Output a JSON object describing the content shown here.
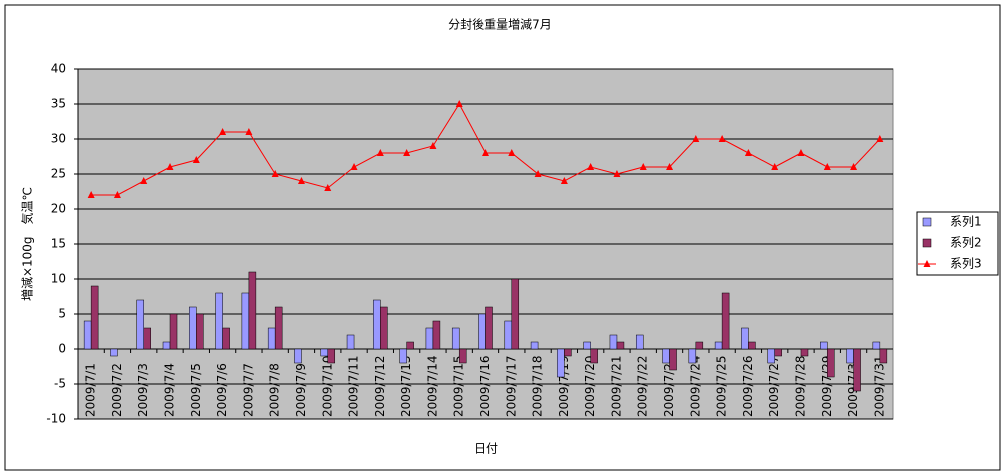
{
  "chart_data": {
    "type": "bar-line",
    "title": "分封後重量増減7月",
    "x_label": "日付",
    "y_label": "増減×100g　気温℃",
    "categories": [
      "2009/7/1",
      "2009/7/2",
      "2009/7/3",
      "2009/7/4",
      "2009/7/5",
      "2009/7/6",
      "2009/7/7",
      "2009/7/8",
      "2009/7/9",
      "2009/7/10",
      "2009/7/11",
      "2009/7/12",
      "2009/7/13",
      "2009/7/14",
      "2009/7/15",
      "2009/7/16",
      "2009/7/17",
      "2009/7/18",
      "2009/7/19",
      "2009/7/20",
      "2009/7/21",
      "2009/7/22",
      "2009/7/23",
      "2009/7/24",
      "2009/7/25",
      "2009/7/26",
      "2009/7/27",
      "2009/7/28",
      "2009/7/29",
      "2009/7/30",
      "2009/7/31"
    ],
    "series": [
      {
        "name": "系列1",
        "kind": "bar",
        "color": "#9999ff",
        "values": [
          4,
          -1,
          7,
          1,
          6,
          8,
          8,
          3,
          -2,
          -1,
          2,
          7,
          -2,
          3,
          3,
          5,
          4,
          1,
          -4,
          1,
          2,
          2,
          -2,
          -2,
          1,
          3,
          -2,
          0,
          1,
          -2,
          1
        ]
      },
      {
        "name": "系列2",
        "kind": "bar",
        "color": "#993366",
        "values": [
          9,
          0,
          3,
          5,
          5,
          3,
          11,
          6,
          0,
          -2,
          0,
          6,
          1,
          4,
          -2,
          6,
          10,
          0,
          -1,
          -2,
          1,
          0,
          -3,
          1,
          8,
          1,
          -1,
          -1,
          -4,
          -6,
          -2
        ]
      },
      {
        "name": "系列3",
        "kind": "line",
        "color": "#ff0000",
        "values": [
          22,
          22,
          24,
          26,
          27,
          31,
          31,
          25,
          24,
          23,
          26,
          28,
          28,
          29,
          35,
          28,
          28,
          25,
          24,
          26,
          25,
          26,
          26,
          30,
          30,
          28,
          26,
          28,
          26,
          26,
          30
        ]
      }
    ],
    "ylim": [
      -10,
      40
    ],
    "yticks": [
      -10,
      -5,
      0,
      5,
      10,
      15,
      20,
      25,
      30,
      35,
      40
    ],
    "grid": true,
    "legend": "right"
  }
}
